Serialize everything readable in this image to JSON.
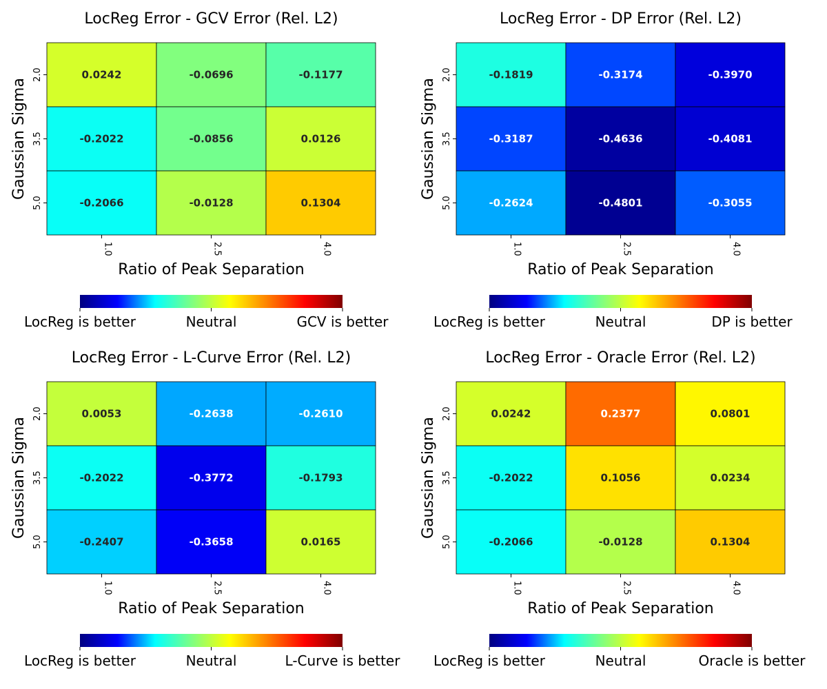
{
  "colormap": "jet",
  "colormap_stops": [
    "#000080",
    "#0000ff",
    "#00ffff",
    "#80ff80",
    "#ffff00",
    "#ff8000",
    "#ff0000",
    "#800000"
  ],
  "chart_data": [
    {
      "type": "heatmap",
      "title": "LocReg Error - GCV Error (Rel. L2)",
      "xlabel": "Ratio of Peak Separation",
      "ylabel": "Gaussian Sigma",
      "x_ticks": [
        "1.0",
        "2.5",
        "4.0"
      ],
      "y_ticks": [
        "2.0",
        "3.5",
        "5.0"
      ],
      "values": [
        [
          0.0242,
          -0.0696,
          -0.1177
        ],
        [
          -0.2022,
          -0.0856,
          0.0126
        ],
        [
          -0.2066,
          -0.0128,
          0.1304
        ]
      ],
      "value_labels": [
        [
          "0.0242",
          "-0.0696",
          "-0.1177"
        ],
        [
          "-0.2022",
          "-0.0856",
          "0.0126"
        ],
        [
          "-0.2066",
          "-0.0128",
          "0.1304"
        ]
      ],
      "vmin": -0.5,
      "vmax": 0.5,
      "colorbar_labels": [
        "LocReg is better",
        "Neutral",
        "GCV is better"
      ]
    },
    {
      "type": "heatmap",
      "title": "LocReg Error - DP Error (Rel. L2)",
      "xlabel": "Ratio of Peak Separation",
      "ylabel": "Gaussian Sigma",
      "x_ticks": [
        "1.0",
        "2.5",
        "4.0"
      ],
      "y_ticks": [
        "2.0",
        "3.5",
        "5.0"
      ],
      "values": [
        [
          -0.1819,
          -0.3174,
          -0.397
        ],
        [
          -0.3187,
          -0.4636,
          -0.4081
        ],
        [
          -0.2624,
          -0.4801,
          -0.3055
        ]
      ],
      "value_labels": [
        [
          "-0.1819",
          "-0.3174",
          "-0.3970"
        ],
        [
          "-0.3187",
          "-0.4636",
          "-0.4081"
        ],
        [
          "-0.2624",
          "-0.4801",
          "-0.3055"
        ]
      ],
      "vmin": -0.5,
      "vmax": 0.5,
      "colorbar_labels": [
        "LocReg is better",
        "Neutral",
        "DP is better"
      ]
    },
    {
      "type": "heatmap",
      "title": "LocReg Error - L-Curve Error (Rel. L2)",
      "xlabel": "Ratio of Peak Separation",
      "ylabel": "Gaussian Sigma",
      "x_ticks": [
        "1.0",
        "2.5",
        "4.0"
      ],
      "y_ticks": [
        "2.0",
        "3.5",
        "5.0"
      ],
      "values": [
        [
          0.0053,
          -0.2638,
          -0.261
        ],
        [
          -0.2022,
          -0.3772,
          -0.1793
        ],
        [
          -0.2407,
          -0.3658,
          0.0165
        ]
      ],
      "value_labels": [
        [
          "0.0053",
          "-0.2638",
          "-0.2610"
        ],
        [
          "-0.2022",
          "-0.3772",
          "-0.1793"
        ],
        [
          "-0.2407",
          "-0.3658",
          "0.0165"
        ]
      ],
      "vmin": -0.5,
      "vmax": 0.5,
      "colorbar_labels": [
        "LocReg is better",
        "Neutral",
        "L-Curve is better"
      ]
    },
    {
      "type": "heatmap",
      "title": "LocReg Error - Oracle Error (Rel. L2)",
      "xlabel": "Ratio of Peak Separation",
      "ylabel": "Gaussian Sigma",
      "x_ticks": [
        "1.0",
        "2.5",
        "4.0"
      ],
      "y_ticks": [
        "2.0",
        "3.5",
        "5.0"
      ],
      "values": [
        [
          0.0242,
          0.2377,
          0.0801
        ],
        [
          -0.2022,
          0.1056,
          0.0234
        ],
        [
          -0.2066,
          -0.0128,
          0.1304
        ]
      ],
      "value_labels": [
        [
          "0.0242",
          "0.2377",
          "0.0801"
        ],
        [
          "-0.2022",
          "0.1056",
          "0.0234"
        ],
        [
          "-0.2066",
          "-0.0128",
          "0.1304"
        ]
      ],
      "vmin": -0.5,
      "vmax": 0.5,
      "colorbar_labels": [
        "LocReg is better",
        "Neutral",
        "Oracle is better"
      ]
    }
  ]
}
